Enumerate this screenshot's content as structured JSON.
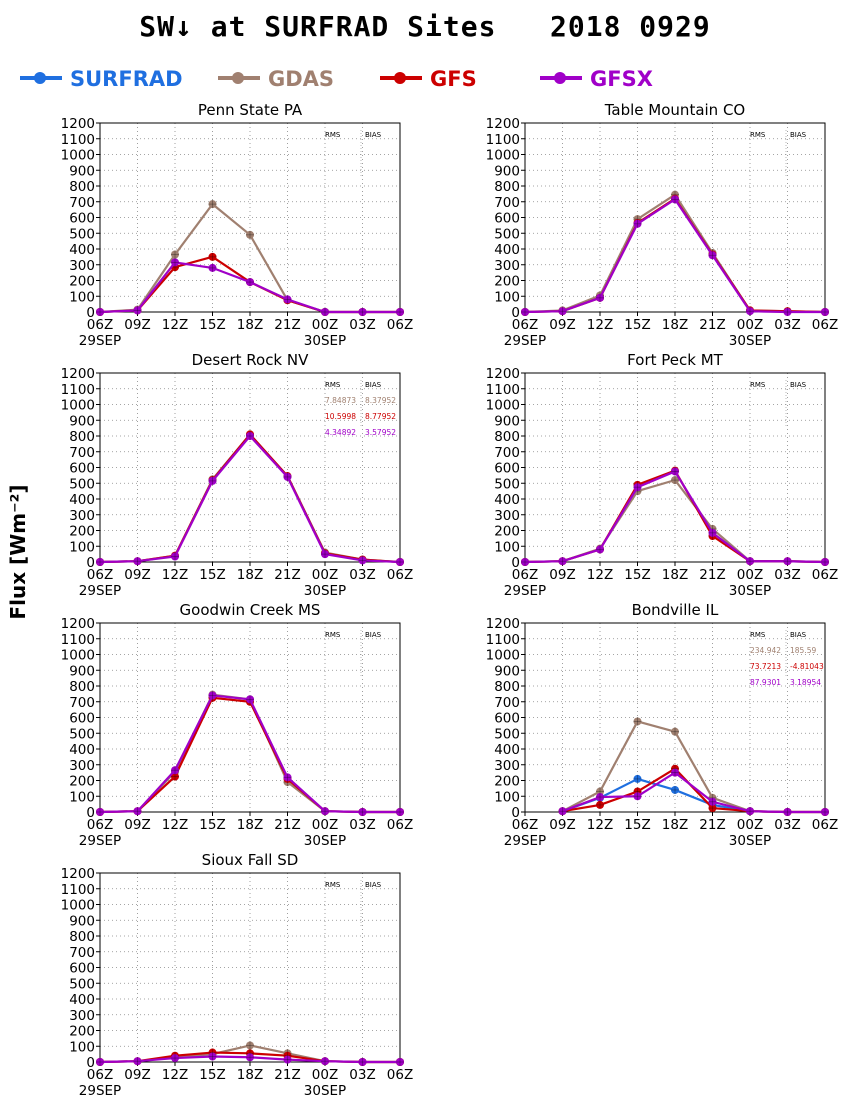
{
  "title": "SW↓ at SURFRAD Sites   2018 0929",
  "ylabel": "Flux [Wm⁻²]",
  "legend": [
    {
      "name": "SURFRAD",
      "color": "#1f6fe0"
    },
    {
      "name": "GDAS",
      "color": "#a08070"
    },
    {
      "name": "GFS",
      "color": "#cc0000"
    },
    {
      "name": "GFSX",
      "color": "#a000c8"
    }
  ],
  "axis": {
    "yticks": [
      0,
      100,
      200,
      300,
      400,
      500,
      600,
      700,
      800,
      900,
      1000,
      1100,
      1200
    ],
    "ylim": [
      0,
      1200
    ],
    "xticks": [
      "06Z",
      "09Z",
      "12Z",
      "15Z",
      "18Z",
      "21Z",
      "00Z",
      "03Z",
      "06Z"
    ],
    "date_labels": [
      {
        "tick_index": 0,
        "text": "29SEP"
      },
      {
        "tick_index": 6,
        "text": "30SEP"
      }
    ],
    "grid": true
  },
  "chart_data": [
    {
      "type": "line",
      "title": "Penn State PA",
      "stats_header": [
        "RMS",
        "BIAS"
      ],
      "stats": [],
      "series": [
        {
          "name": "GDAS",
          "color": "#a08070",
          "values": [
            0,
            15,
            365,
            685,
            490,
            75,
            0,
            0,
            0
          ]
        },
        {
          "name": "GFS",
          "color": "#cc0000",
          "values": [
            0,
            10,
            285,
            350,
            190,
            75,
            0,
            0,
            0
          ]
        },
        {
          "name": "GFSX",
          "color": "#a000c8",
          "values": [
            0,
            10,
            315,
            280,
            190,
            80,
            0,
            0,
            0
          ]
        }
      ]
    },
    {
      "type": "line",
      "title": "Table Mountain CO",
      "stats_header": [
        "RMS",
        "BIAS"
      ],
      "stats": [],
      "series": [
        {
          "name": "GDAS",
          "color": "#a08070",
          "values": [
            0,
            10,
            105,
            590,
            745,
            375,
            10,
            5,
            0
          ]
        },
        {
          "name": "GFS",
          "color": "#cc0000",
          "values": [
            0,
            5,
            90,
            565,
            720,
            365,
            10,
            5,
            0
          ]
        },
        {
          "name": "GFSX",
          "color": "#a000c8",
          "values": [
            0,
            5,
            90,
            560,
            715,
            360,
            5,
            0,
            0
          ]
        }
      ]
    },
    {
      "type": "line",
      "title": "Desert Rock NV",
      "stats_header": [
        "RMS",
        "BIAS"
      ],
      "stats": [
        {
          "color": "#a08070",
          "rms": "7.84873",
          "bias": "8.37952"
        },
        {
          "color": "#cc0000",
          "rms": "10.5998",
          "bias": "8.77952"
        },
        {
          "color": "#a000c8",
          "rms": "4.34892",
          "bias": "3.57952"
        }
      ],
      "series": [
        {
          "name": "GDAS",
          "color": "#a08070",
          "values": [
            0,
            5,
            40,
            525,
            810,
            545,
            60,
            15,
            0
          ]
        },
        {
          "name": "GFS",
          "color": "#cc0000",
          "values": [
            0,
            5,
            40,
            520,
            810,
            545,
            55,
            15,
            0
          ]
        },
        {
          "name": "GFSX",
          "color": "#a000c8",
          "values": [
            0,
            5,
            35,
            515,
            800,
            540,
            50,
            10,
            0
          ]
        }
      ]
    },
    {
      "type": "line",
      "title": "Fort Peck MT",
      "stats_header": [
        "RMS",
        "BIAS"
      ],
      "stats": [],
      "series": [
        {
          "name": "GDAS",
          "color": "#a08070",
          "values": [
            0,
            5,
            85,
            450,
            520,
            210,
            5,
            5,
            0
          ]
        },
        {
          "name": "GFS",
          "color": "#cc0000",
          "values": [
            0,
            5,
            80,
            490,
            580,
            165,
            5,
            5,
            0
          ]
        },
        {
          "name": "GFSX",
          "color": "#a000c8",
          "values": [
            0,
            5,
            80,
            475,
            575,
            185,
            5,
            5,
            0
          ]
        }
      ]
    },
    {
      "type": "line",
      "title": "Goodwin Creek MS",
      "stats_header": [
        "RMS",
        "BIAS"
      ],
      "stats": [],
      "series": [
        {
          "name": "GDAS",
          "color": "#a08070",
          "values": [
            0,
            5,
            255,
            745,
            715,
            190,
            5,
            0,
            0
          ]
        },
        {
          "name": "GFS",
          "color": "#cc0000",
          "values": [
            0,
            5,
            225,
            725,
            700,
            210,
            5,
            0,
            0
          ]
        },
        {
          "name": "GFSX",
          "color": "#a000c8",
          "values": [
            0,
            5,
            265,
            740,
            715,
            220,
            5,
            0,
            0
          ]
        }
      ]
    },
    {
      "type": "line",
      "title": "Bondville IL",
      "stats_header": [
        "RMS",
        "BIAS"
      ],
      "stats": [
        {
          "color": "#a08070",
          "rms": "234.942",
          "bias": "185.59"
        },
        {
          "color": "#cc0000",
          "rms": "73.7213",
          "bias": "-4.81043"
        },
        {
          "color": "#a000c8",
          "rms": "87.9301",
          "bias": "3.18954"
        }
      ],
      "series": [
        {
          "name": "SURFRAD",
          "color": "#1f6fe0",
          "values": [
            null,
            5,
            90,
            210,
            140,
            45,
            5,
            null,
            null
          ]
        },
        {
          "name": "GDAS",
          "color": "#a08070",
          "values": [
            null,
            5,
            130,
            575,
            510,
            90,
            5,
            0,
            0
          ]
        },
        {
          "name": "GFS",
          "color": "#cc0000",
          "values": [
            null,
            5,
            45,
            130,
            275,
            25,
            5,
            0,
            0
          ]
        },
        {
          "name": "GFSX",
          "color": "#a000c8",
          "values": [
            null,
            5,
            95,
            100,
            250,
            65,
            5,
            0,
            0
          ]
        }
      ]
    },
    {
      "type": "line",
      "title": "Sioux Fall SD",
      "stats_header": [
        "RMS",
        "BIAS"
      ],
      "stats": [],
      "series": [
        {
          "name": "GDAS",
          "color": "#a08070",
          "values": [
            0,
            5,
            30,
            50,
            105,
            55,
            5,
            0,
            0
          ]
        },
        {
          "name": "GFS",
          "color": "#cc0000",
          "values": [
            0,
            5,
            40,
            60,
            55,
            40,
            5,
            0,
            0
          ]
        },
        {
          "name": "GFSX",
          "color": "#a000c8",
          "values": [
            0,
            5,
            25,
            35,
            30,
            15,
            5,
            0,
            0
          ]
        }
      ]
    }
  ]
}
